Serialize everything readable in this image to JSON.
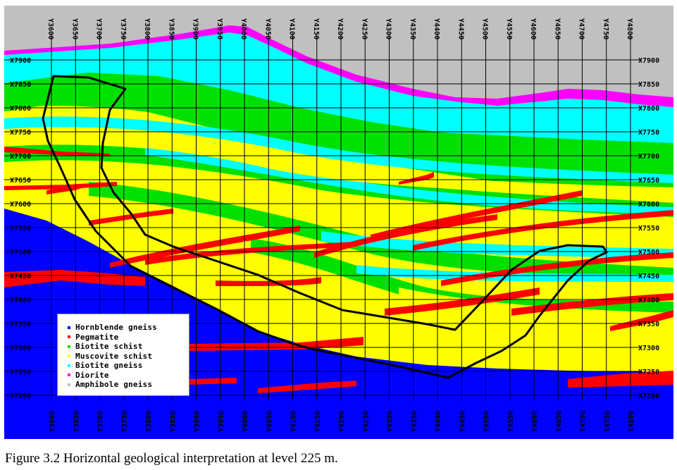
{
  "caption": "Figure 3.2 Horizontal geological interpretation at level 225 m.",
  "y_ticks": [
    "Y3600",
    "Y3650",
    "Y3700",
    "Y3750",
    "Y3800",
    "Y3850",
    "Y3900",
    "Y3950",
    "Y4000",
    "Y4050",
    "Y4100",
    "Y4150",
    "Y4200",
    "Y4250",
    "Y4300",
    "Y4350",
    "Y4400",
    "Y4450",
    "Y4500",
    "Y4550",
    "Y4600",
    "Y4650",
    "Y4700",
    "Y4750",
    "Y4800"
  ],
  "x_ticks": [
    "X7900",
    "X7850",
    "X7800",
    "X7750",
    "X7700",
    "X7650",
    "X7600",
    "X7550",
    "X7500",
    "X7450",
    "X7400",
    "X7350",
    "X7300",
    "X7250",
    "X7200"
  ],
  "legend": [
    {
      "label": "Hornblende gneiss",
      "color": "#0000ff"
    },
    {
      "label": "Pegmatite",
      "color": "#ff0000"
    },
    {
      "label": "Biotite schist",
      "color": "#00e000"
    },
    {
      "label": "Muscovite schist",
      "color": "#ffff00"
    },
    {
      "label": "Biotite gneiss",
      "color": "#00ffff"
    },
    {
      "label": "Diorite",
      "color": "#ff00ff"
    },
    {
      "label": "Amphibole gneiss",
      "color": "#c0c0c0"
    }
  ],
  "colors": {
    "hornblende": "#0000ff",
    "pegmatite": "#ff0000",
    "biotite_schist": "#00e000",
    "muscovite": "#ffff00",
    "biotite_gneiss": "#00ffff",
    "diorite": "#ff00ff",
    "amphibole": "#c0c0c0"
  }
}
